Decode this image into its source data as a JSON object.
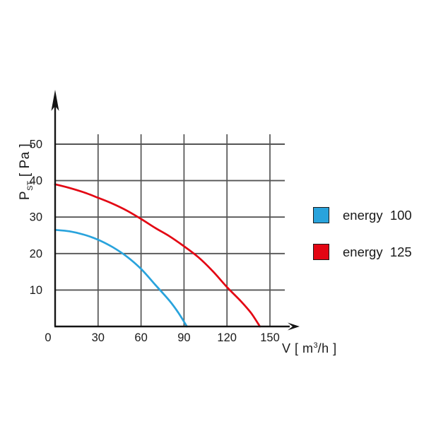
{
  "chart_data": {
    "type": "line",
    "title": "",
    "xlabel": "V [ m³/h ]",
    "ylabel": "P_ST [ Pa ]",
    "xlabel_parts": {
      "pre": "V [ m",
      "sup": "3",
      "post": "/h ]"
    },
    "ylabel_parts": {
      "main": "P",
      "sub": "ST",
      "post": " [ Pa ]"
    },
    "xlim": [
      0,
      150
    ],
    "ylim": [
      0,
      50
    ],
    "x_ticks": [
      0,
      30,
      60,
      90,
      120,
      150
    ],
    "y_ticks": [
      10,
      20,
      30,
      40,
      50
    ],
    "grid": true,
    "legend_position": "right of plot",
    "series": [
      {
        "name": "energy 100",
        "color": "#29A3DC",
        "points": [
          [
            0,
            26.5
          ],
          [
            10,
            26.1
          ],
          [
            20,
            25.2
          ],
          [
            30,
            23.8
          ],
          [
            40,
            21.8
          ],
          [
            50,
            19.2
          ],
          [
            60,
            15.8
          ],
          [
            70,
            11.4
          ],
          [
            80,
            7.0
          ],
          [
            86,
            3.8
          ],
          [
            92,
            0
          ]
        ]
      },
      {
        "name": "energy 125",
        "color": "#E30613",
        "points": [
          [
            0,
            39
          ],
          [
            10,
            38
          ],
          [
            20,
            36.8
          ],
          [
            30,
            35.3
          ],
          [
            40,
            33.7
          ],
          [
            50,
            31.8
          ],
          [
            60,
            29.5
          ],
          [
            70,
            27
          ],
          [
            80,
            24.7
          ],
          [
            90,
            22
          ],
          [
            100,
            19
          ],
          [
            110,
            15.2
          ],
          [
            120,
            10.8
          ],
          [
            130,
            6.8
          ],
          [
            137,
            3.6
          ],
          [
            143,
            0
          ]
        ]
      }
    ]
  },
  "legend": {
    "items": [
      {
        "label": "energy  100",
        "color": "#29A3DC"
      },
      {
        "label": "energy  125",
        "color": "#E30613"
      }
    ]
  },
  "colors": {
    "background": "#ffffff",
    "grid": "#545454",
    "axis": "#141414",
    "text": "#1a1a1a",
    "blue_curve": "#29A3DC",
    "red_curve": "#E30613"
  }
}
